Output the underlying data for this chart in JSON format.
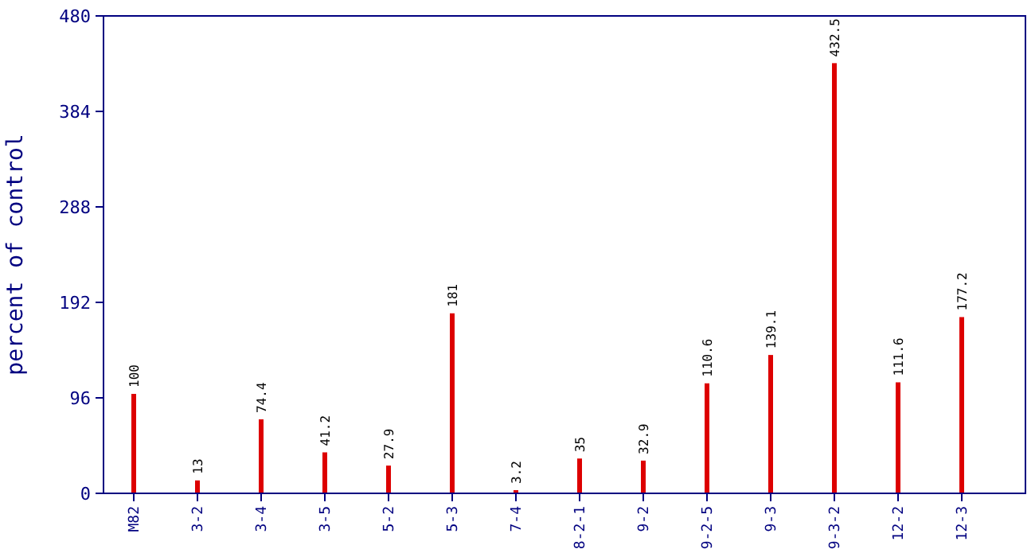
{
  "chart_data": {
    "type": "bar",
    "ylabel": "percent of control",
    "categories": [
      "M82",
      "3-2",
      "3-4",
      "3-5",
      "5-2",
      "5-3",
      "7-4",
      "8-2-1",
      "9-2",
      "9-2-5",
      "9-3",
      "9-3-2",
      "12-2",
      "12-3"
    ],
    "values": [
      100,
      13,
      74.4,
      41.2,
      27.9,
      181,
      3.2,
      35,
      32.9,
      110.6,
      139.1,
      432.5,
      111.6,
      177.2
    ],
    "color": "#dd0000",
    "ylim": [
      0,
      480
    ],
    "yticks": [
      0,
      96,
      192,
      288,
      384,
      480
    ],
    "data_labels": true,
    "grid": false
  }
}
